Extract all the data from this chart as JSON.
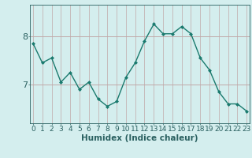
{
  "x": [
    0,
    1,
    2,
    3,
    4,
    5,
    6,
    7,
    8,
    9,
    10,
    11,
    12,
    13,
    14,
    15,
    16,
    17,
    18,
    19,
    20,
    21,
    22,
    23
  ],
  "y": [
    7.85,
    7.45,
    7.55,
    7.05,
    7.25,
    6.9,
    7.05,
    6.7,
    6.55,
    6.65,
    7.15,
    7.45,
    7.9,
    8.25,
    8.05,
    8.05,
    8.2,
    8.05,
    7.55,
    7.3,
    6.85,
    6.6,
    6.6,
    6.45
  ],
  "xlabel": "Humidex (Indice chaleur)",
  "line_color": "#1a7a6e",
  "marker_color": "#1a7a6e",
  "bg_color": "#d4eeee",
  "grid_v_color": "#b0d8d8",
  "grid_h_color": "#c0a8a8",
  "yticks": [
    7,
    8
  ],
  "xticks": [
    0,
    1,
    2,
    3,
    4,
    5,
    6,
    7,
    8,
    9,
    10,
    11,
    12,
    13,
    14,
    15,
    16,
    17,
    18,
    19,
    20,
    21,
    22,
    23
  ],
  "ylim": [
    6.2,
    8.65
  ],
  "xlim": [
    -0.3,
    23.3
  ],
  "tick_color": "#2a6060",
  "axis_color": "#2a6060",
  "xlabel_fontsize": 7.5,
  "tick_fontsize": 6.5,
  "ytick_fontsize": 8.0
}
